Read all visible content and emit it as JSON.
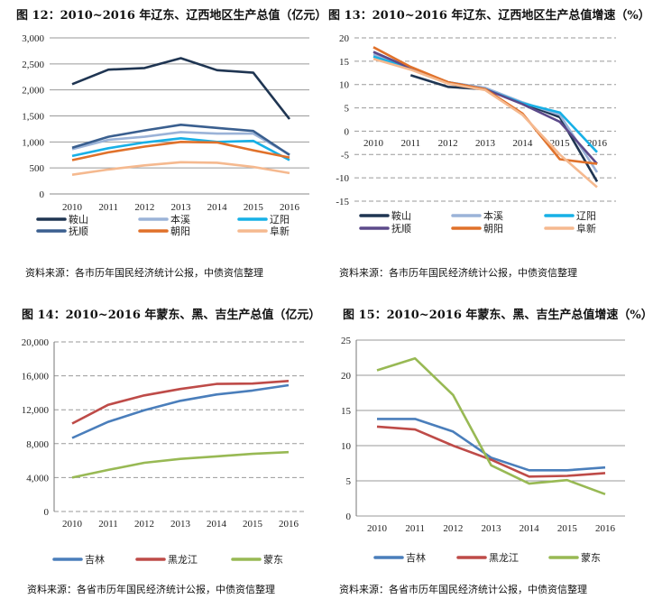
{
  "chart_data": [
    {
      "type": "line",
      "title": "图 12：2010~2016 年辽东、辽西地区生产总值（亿元）",
      "source": "资料来源：各市历年国民经济统计公报，中债资信整理",
      "x": [
        "2010",
        "2011",
        "2012",
        "2013",
        "2014",
        "2015",
        "2016"
      ],
      "ylim": [
        0,
        3000
      ],
      "yticks": [
        "0",
        "500",
        "1,000",
        "1,500",
        "2,000",
        "2,500",
        "3,000"
      ],
      "grid": true,
      "legend": "bottom",
      "series": [
        {
          "name": "鞍山",
          "color": "#1f3552",
          "values": [
            2110,
            2390,
            2420,
            2610,
            2380,
            2330,
            1440
          ]
        },
        {
          "name": "本溪",
          "color": "#9bb3d8",
          "values": [
            860,
            1040,
            1100,
            1190,
            1160,
            1160,
            760
          ]
        },
        {
          "name": "辽阳",
          "color": "#17b0e6",
          "values": [
            730,
            880,
            990,
            1070,
            1000,
            1020,
            650
          ]
        },
        {
          "name": "抚顺",
          "color": "#3a5f8f",
          "values": [
            890,
            1100,
            1220,
            1330,
            1270,
            1210,
            750
          ]
        },
        {
          "name": "朝阳",
          "color": "#e0712a",
          "values": [
            650,
            800,
            910,
            1000,
            990,
            840,
            700
          ]
        },
        {
          "name": "阜新",
          "color": "#f5b98f",
          "values": [
            370,
            470,
            550,
            610,
            600,
            520,
            400
          ]
        }
      ]
    },
    {
      "type": "line",
      "title": "图 13：2010~2016 年辽东、辽西地区生产总值增速（%）",
      "source": "资料来源：各市历年国民经济统计公报，中债资信整理",
      "x": [
        "2010",
        "2011",
        "2012",
        "2013",
        "2014",
        "2015",
        "2016"
      ],
      "ylim": [
        -15,
        20
      ],
      "yticks": [
        "-15",
        "-10",
        "-5",
        "0",
        "5",
        "10",
        "15",
        "20"
      ],
      "grid": true,
      "legend": "bottom",
      "series": [
        {
          "name": "鞍山",
          "color": "#1f3552",
          "values": [
            null,
            12,
            9.5,
            9,
            6,
            3,
            -10.8
          ]
        },
        {
          "name": "本溪",
          "color": "#9bb3d8",
          "values": [
            16.5,
            13.5,
            10.5,
            9.3,
            6.2,
            3.5,
            -8.8
          ]
        },
        {
          "name": "辽阳",
          "color": "#17b0e6",
          "values": [
            16,
            13.5,
            10.5,
            9,
            6,
            4,
            -4.5
          ]
        },
        {
          "name": "抚顺",
          "color": "#5c4a8a",
          "values": [
            17,
            13.5,
            10.5,
            9,
            5.8,
            2,
            -7
          ]
        },
        {
          "name": "朝阳",
          "color": "#e0712a",
          "values": [
            18,
            13.8,
            10.5,
            9,
            3.8,
            -6,
            -7
          ]
        },
        {
          "name": "阜新",
          "color": "#f5b98f",
          "values": [
            15.5,
            13.2,
            10.2,
            8.8,
            3.5,
            -5,
            -12
          ]
        }
      ]
    },
    {
      "type": "line",
      "title": "图 14：2010~2016 年蒙东、黑、吉生产总值（亿元）",
      "source": "资料来源：各省市历年国民经济统计公报，中债资信整理",
      "x": [
        "2010",
        "2011",
        "2012",
        "2013",
        "2014",
        "2015",
        "2016"
      ],
      "ylim": [
        0,
        20000
      ],
      "yticks": [
        "0",
        "4,000",
        "8,000",
        "12,000",
        "16,000",
        "20,000"
      ],
      "grid": true,
      "legend": "bottom",
      "series": [
        {
          "name": "吉林",
          "color": "#4a7ebb",
          "values": [
            8670,
            10570,
            11940,
            13050,
            13800,
            14270,
            14890
          ]
        },
        {
          "name": "黑龙江",
          "color": "#be4b48",
          "values": [
            10370,
            12580,
            13690,
            14450,
            15040,
            15080,
            15390
          ]
        },
        {
          "name": "蒙东",
          "color": "#98b954",
          "values": [
            4000,
            4900,
            5750,
            6200,
            6500,
            6800,
            7000
          ]
        }
      ]
    },
    {
      "type": "line",
      "title": "图 15：2010~2016 年蒙东、黑、吉生产总值增速（%）",
      "source": "资料来源：各省市历年国民经济统计公报，中债资信整理",
      "x": [
        "2010",
        "2011",
        "2012",
        "2013",
        "2014",
        "2015",
        "2016"
      ],
      "ylim": [
        0,
        25
      ],
      "yticks": [
        "0",
        "5",
        "10",
        "15",
        "20",
        "25"
      ],
      "grid": true,
      "legend": "bottom",
      "series": [
        {
          "name": "吉林",
          "color": "#4a7ebb",
          "values": [
            13.8,
            13.8,
            12,
            8.3,
            6.5,
            6.5,
            6.9
          ]
        },
        {
          "name": "黑龙江",
          "color": "#be4b48",
          "values": [
            12.7,
            12.3,
            10,
            8,
            5.6,
            5.7,
            6.1
          ]
        },
        {
          "name": "蒙东",
          "color": "#98b954",
          "values": [
            20.7,
            22.4,
            17.2,
            7.2,
            4.6,
            5.1,
            3.1
          ]
        }
      ]
    }
  ]
}
